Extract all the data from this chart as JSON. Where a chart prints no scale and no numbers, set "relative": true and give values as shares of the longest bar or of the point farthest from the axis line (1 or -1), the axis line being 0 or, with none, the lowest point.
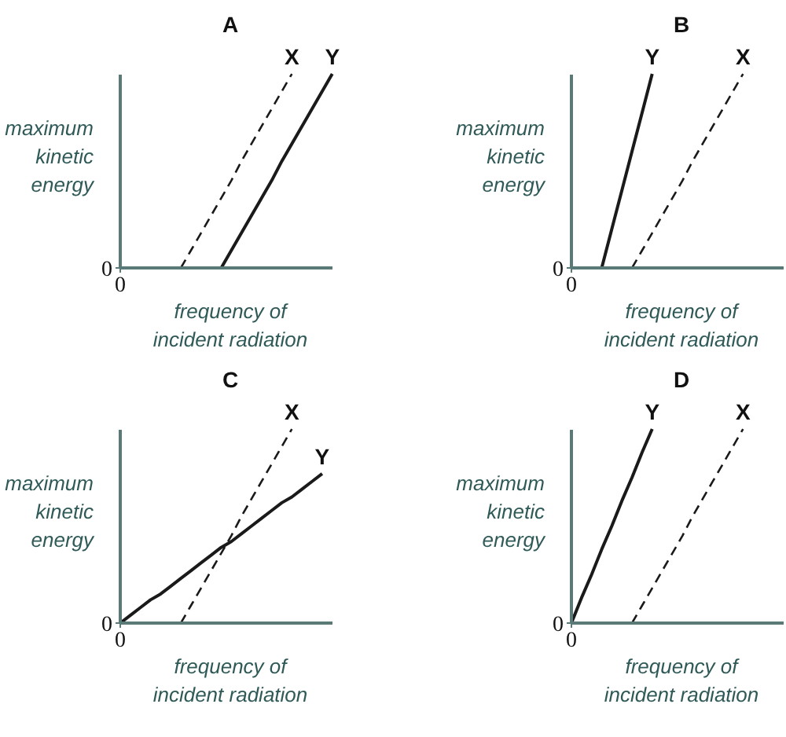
{
  "chart_data": [
    {
      "type": "line",
      "title": "A",
      "xlabel": "frequency of incident radiation",
      "ylabel": "maximum kinetic energy",
      "relative": true,
      "annotations": [
        "0",
        "0"
      ],
      "categories": [
        null,
        null,
        null,
        null,
        null,
        null,
        null,
        null,
        null,
        null,
        null,
        null,
        null,
        null,
        null,
        null,
        null,
        null,
        null,
        null,
        null,
        null
      ],
      "series": [
        {
          "name": "X",
          "color": "#1a1a1a",
          "line_style": "dashed",
          "values": [
            null,
            null,
            null,
            null,
            null,
            null,
            0,
            0.09,
            0.18,
            0.27,
            0.36,
            0.45,
            0.55,
            0.64,
            0.73,
            0.82,
            0.91,
            1,
            null,
            null,
            null,
            null
          ]
        },
        {
          "name": "Y",
          "color": "#1a1a1a",
          "line_style": "solid",
          "values": [
            null,
            null,
            null,
            null,
            null,
            null,
            null,
            null,
            null,
            null,
            0,
            0.09,
            0.18,
            0.27,
            0.36,
            0.45,
            0.55,
            0.64,
            0.73,
            0.82,
            0.91,
            1
          ]
        }
      ]
    },
    {
      "type": "line",
      "title": "B",
      "xlabel": "frequency of incident radiation",
      "ylabel": "maximum kinetic energy",
      "relative": true,
      "annotations": [
        "0",
        "0"
      ],
      "categories": [
        null,
        null,
        null,
        null,
        null,
        null,
        null,
        null,
        null,
        null,
        null,
        null,
        null,
        null,
        null,
        null,
        null,
        null,
        null,
        null,
        null,
        null
      ],
      "series": [
        {
          "name": "Y",
          "color": "#1a1a1a",
          "line_style": "solid",
          "values": [
            null,
            null,
            null,
            0,
            0.2,
            0.4,
            0.6,
            0.8,
            1,
            null,
            null,
            null,
            null,
            null,
            null,
            null,
            null,
            null,
            null,
            null,
            null,
            null
          ]
        },
        {
          "name": "X",
          "color": "#1a1a1a",
          "line_style": "dashed",
          "values": [
            null,
            null,
            null,
            null,
            null,
            null,
            0,
            0.09,
            0.18,
            0.27,
            0.36,
            0.45,
            0.55,
            0.64,
            0.73,
            0.82,
            0.91,
            1,
            null,
            null,
            null,
            null
          ]
        }
      ]
    },
    {
      "type": "line",
      "title": "C",
      "xlabel": "frequency of incident radiation",
      "ylabel": "maximum kinetic energy",
      "relative": true,
      "annotations": [
        "0",
        "0"
      ],
      "categories": [
        null,
        null,
        null,
        null,
        null,
        null,
        null,
        null,
        null,
        null,
        null,
        null,
        null,
        null,
        null,
        null,
        null,
        null,
        null,
        null,
        null,
        null
      ],
      "series": [
        {
          "name": "X",
          "color": "#1a1a1a",
          "line_style": "dashed",
          "values": [
            null,
            null,
            null,
            null,
            null,
            null,
            0,
            0.09,
            0.18,
            0.27,
            0.36,
            0.45,
            0.55,
            0.64,
            0.73,
            0.82,
            0.91,
            1,
            null,
            null,
            null,
            null
          ]
        },
        {
          "name": "Y",
          "color": "#1a1a1a",
          "line_style": "solid",
          "values": [
            0,
            0.04,
            0.08,
            0.12,
            0.15,
            0.19,
            0.23,
            0.27,
            0.31,
            0.35,
            0.39,
            0.42,
            0.46,
            0.5,
            0.54,
            0.58,
            0.62,
            0.65,
            0.69,
            0.73,
            0.77,
            null
          ]
        }
      ]
    },
    {
      "type": "line",
      "title": "D",
      "xlabel": "frequency of incident radiation",
      "ylabel": "maximum kinetic energy",
      "relative": true,
      "annotations": [
        "0",
        "0"
      ],
      "categories": [
        null,
        null,
        null,
        null,
        null,
        null,
        null,
        null,
        null,
        null,
        null,
        null,
        null,
        null,
        null,
        null,
        null,
        null,
        null,
        null,
        null,
        null
      ],
      "series": [
        {
          "name": "Y",
          "color": "#1a1a1a",
          "line_style": "solid",
          "values": [
            0,
            0.13,
            0.25,
            0.38,
            0.5,
            0.63,
            0.75,
            0.88,
            1,
            null,
            null,
            null,
            null,
            null,
            null,
            null,
            null,
            null,
            null,
            null,
            null,
            null
          ]
        },
        {
          "name": "X",
          "color": "#1a1a1a",
          "line_style": "dashed",
          "values": [
            null,
            null,
            null,
            null,
            null,
            null,
            0,
            0.09,
            0.18,
            0.27,
            0.36,
            0.45,
            0.55,
            0.64,
            0.73,
            0.82,
            0.91,
            1,
            null,
            null,
            null,
            null
          ]
        }
      ]
    }
  ]
}
